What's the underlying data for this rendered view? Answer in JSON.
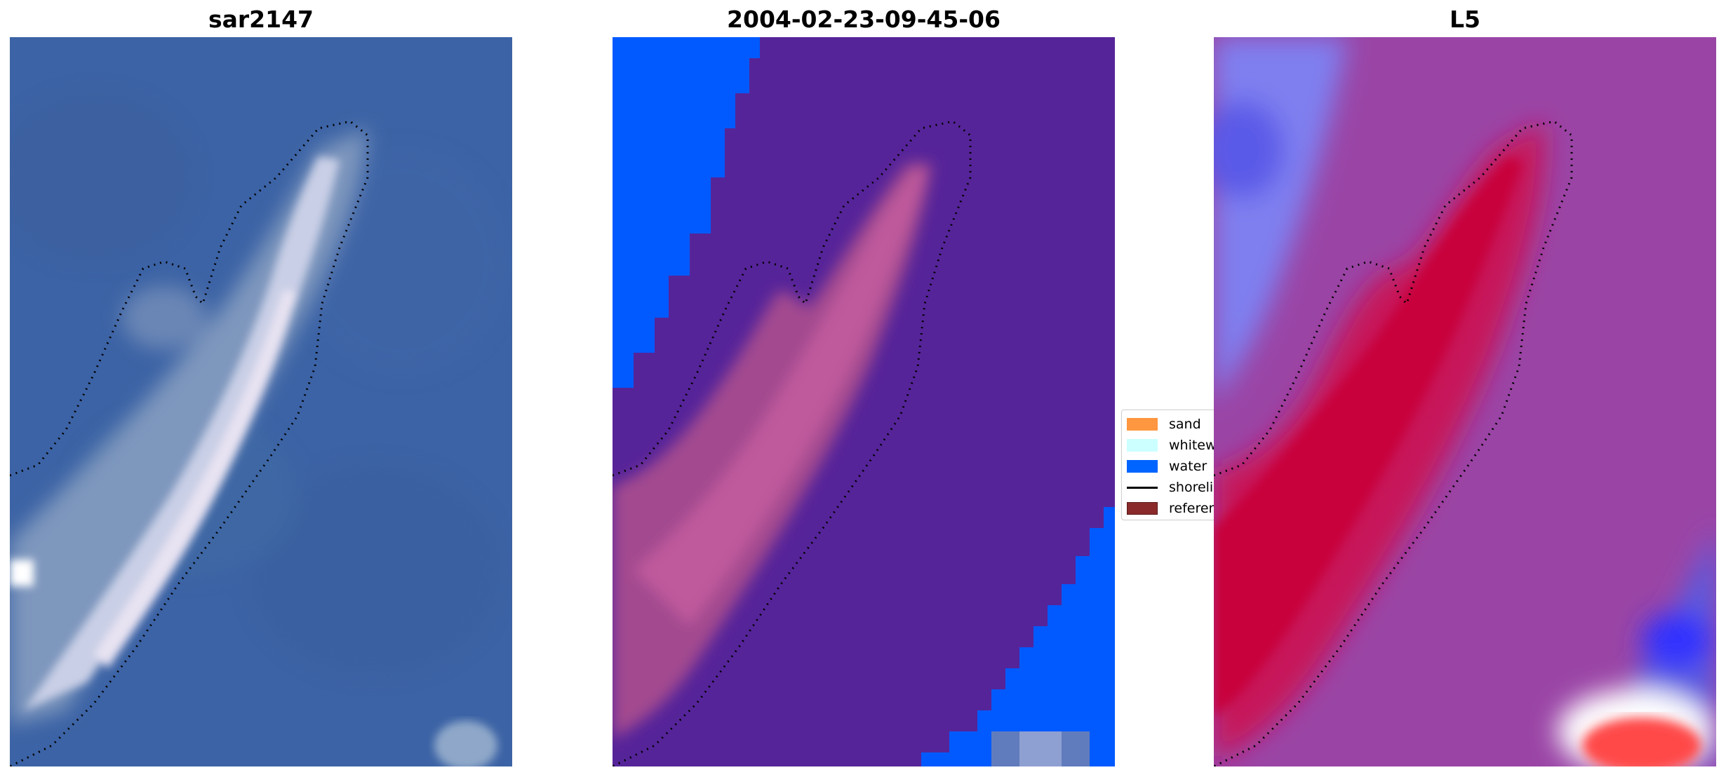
{
  "panels": [
    {
      "title": "sar2147",
      "kind": "rgb-satellite-image"
    },
    {
      "title": "2004-02-23-09-45-06",
      "kind": "classified-image"
    },
    {
      "title": "L5",
      "kind": "index-image"
    }
  ],
  "legend": {
    "items": [
      {
        "label": "sand",
        "color": "#ff9640",
        "style": "patch"
      },
      {
        "label": "whitewater",
        "color": "#ccffff",
        "style": "patch"
      },
      {
        "label": "water",
        "color": "#0064ff",
        "style": "patch"
      },
      {
        "label": "shoreline",
        "color": "#000000",
        "style": "line"
      },
      {
        "label": "reference",
        "color": "#8b2a2a",
        "style": "patch"
      }
    ]
  }
}
